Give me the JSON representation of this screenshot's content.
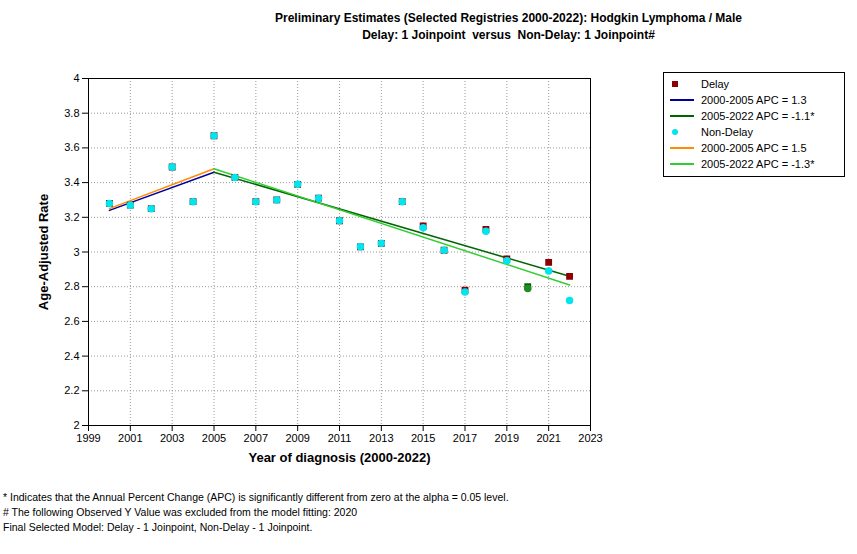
{
  "chart_data": {
    "type": "line",
    "title": "Preliminary Estimates (Selected Registries 2000-2022): Hodgkin Lymphoma / Male",
    "subtitle": "Delay: 1 Joinpoint  versus  Non-Delay: 1 Joinpoint#",
    "x_label": "Year of diagnosis (2000-2022)",
    "y_label": "Age-Adjusted Rate",
    "xlim": [
      1999,
      2023
    ],
    "xticks": [
      1999,
      2001,
      2003,
      2005,
      2007,
      2009,
      2011,
      2013,
      2015,
      2017,
      2019,
      2021,
      2023
    ],
    "ylim": [
      2,
      4
    ],
    "yticks": [
      2,
      2.2,
      2.4,
      2.6,
      2.8,
      3,
      3.2,
      3.4,
      3.6,
      3.8,
      4
    ],
    "grid": true,
    "legend": "right",
    "series": [
      {
        "name": "Delay",
        "type": "scatter",
        "marker": "square",
        "color": "#8b0000",
        "x": [
          2000,
          2001,
          2002,
          2003,
          2004,
          2005,
          2006,
          2007,
          2008,
          2009,
          2010,
          2011,
          2012,
          2013,
          2014,
          2015,
          2016,
          2017,
          2018,
          2019,
          2020,
          2021,
          2022
        ],
        "values": [
          3.28,
          3.27,
          3.25,
          3.49,
          3.29,
          3.67,
          3.43,
          3.29,
          3.3,
          3.39,
          3.31,
          3.18,
          3.03,
          3.05,
          3.29,
          3.15,
          3.01,
          2.78,
          3.13,
          2.96,
          2.8,
          2.94,
          2.86
        ],
        "colors": [
          "#8b0000",
          "#8b0000",
          "#8b0000",
          "#8b0000",
          "#8b0000",
          "#8b0000",
          "#8b0000",
          "#8b0000",
          "#8b0000",
          "#8b0000",
          "#8b0000",
          "#8b0000",
          "#8b0000",
          "#8b0000",
          "#8b0000",
          "#8b0000",
          "#8b0000",
          "#8b0000",
          "#8b0000",
          "#8b0000",
          "#006400",
          "#8b0000",
          "#8b0000"
        ]
      },
      {
        "name": "2000-2005 APC = 1.3",
        "type": "line",
        "line_style": "solid",
        "color": "#0000a0",
        "x": [
          2000,
          2005
        ],
        "values": [
          3.24,
          3.46
        ]
      },
      {
        "name": "2005-2022 APC = -1.1*",
        "type": "line",
        "line_style": "solid",
        "color": "#006400",
        "x": [
          2005,
          2022
        ],
        "values": [
          3.46,
          2.86
        ]
      },
      {
        "name": "Non-Delay",
        "type": "scatter",
        "marker": "circle",
        "color": "#00e5ee",
        "x": [
          2000,
          2001,
          2002,
          2003,
          2004,
          2005,
          2006,
          2007,
          2008,
          2009,
          2010,
          2011,
          2012,
          2013,
          2014,
          2015,
          2016,
          2017,
          2018,
          2019,
          2020,
          2021,
          2022
        ],
        "values": [
          3.28,
          3.27,
          3.25,
          3.49,
          3.29,
          3.67,
          3.43,
          3.29,
          3.3,
          3.39,
          3.31,
          3.18,
          3.03,
          3.05,
          3.29,
          3.14,
          3.01,
          2.77,
          3.12,
          2.95,
          2.79,
          2.89,
          2.72
        ],
        "colors": [
          "#00e5ee",
          "#00e5ee",
          "#00e5ee",
          "#00e5ee",
          "#00e5ee",
          "#00e5ee",
          "#00e5ee",
          "#00e5ee",
          "#00e5ee",
          "#00e5ee",
          "#00e5ee",
          "#00e5ee",
          "#00e5ee",
          "#00e5ee",
          "#00e5ee",
          "#00e5ee",
          "#00e5ee",
          "#00e5ee",
          "#00e5ee",
          "#00e5ee",
          "#228b22",
          "#00e5ee",
          "#00e5ee"
        ]
      },
      {
        "name": "2000-2005 APC = 1.5",
        "type": "line",
        "line_style": "solid",
        "color": "#ff8c00",
        "x": [
          2000,
          2005
        ],
        "values": [
          3.25,
          3.48
        ]
      },
      {
        "name": "2005-2022 APC = -1.3*",
        "type": "line",
        "line_style": "solid",
        "color": "#32cd32",
        "x": [
          2005,
          2022
        ],
        "values": [
          3.48,
          2.81
        ]
      }
    ],
    "notes": [
      "* Indicates that the Annual Percent Change (APC) is significantly different from zero at the alpha = 0.05 level.",
      "# The following Observed Y Value was excluded from the model fitting: 2020",
      "Final Selected Model: Delay - 1 Joinpoint, Non-Delay - 1 Joinpoint."
    ]
  }
}
